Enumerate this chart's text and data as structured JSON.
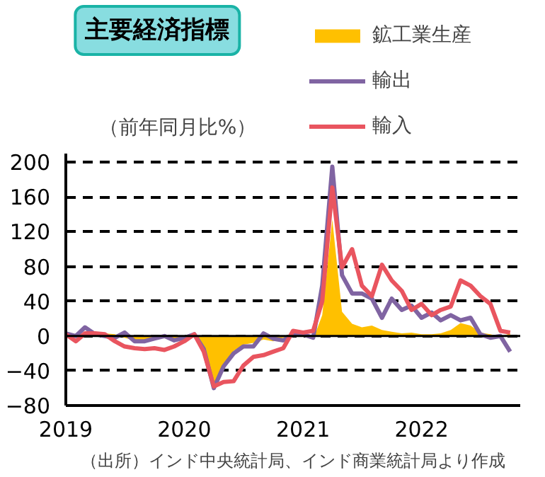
{
  "chart_data": {
    "type": "line",
    "title": "主要経済指標",
    "ylabel": "（前年同月比%）",
    "annotations": [
      "（出所）インド中央統計局、インド商業統計局より作成"
    ],
    "x": [
      "2019-01",
      "2019-02",
      "2019-03",
      "2019-04",
      "2019-05",
      "2019-06",
      "2019-07",
      "2019-08",
      "2019-09",
      "2019-10",
      "2019-11",
      "2019-12",
      "2020-01",
      "2020-02",
      "2020-03",
      "2020-04",
      "2020-05",
      "2020-06",
      "2020-07",
      "2020-08",
      "2020-09",
      "2020-10",
      "2020-11",
      "2020-12",
      "2021-01",
      "2021-02",
      "2021-03",
      "2021-04",
      "2021-05",
      "2021-06",
      "2021-07",
      "2021-08",
      "2021-09",
      "2021-10",
      "2021-11",
      "2021-12",
      "2022-01",
      "2022-02",
      "2022-03",
      "2022-04",
      "2022-05",
      "2022-06",
      "2022-07",
      "2022-08",
      "2022-09",
      "2022-10"
    ],
    "series": [
      {
        "name": "鉱工業生産",
        "type": "area",
        "color": "#ffc000",
        "values": [
          0,
          2,
          3,
          4,
          3,
          2,
          -2,
          -5,
          -7,
          -4,
          -2,
          -6,
          -3,
          2,
          -18,
          -57,
          -33,
          -17,
          -10,
          -8,
          -4,
          -6,
          -2,
          1,
          1,
          -4,
          24,
          134,
          28,
          14,
          10,
          12,
          7,
          5,
          3,
          4,
          2,
          2,
          3,
          7,
          15,
          12,
          4,
          2,
          -1,
          3
        ]
      },
      {
        "name": "輸出",
        "color": "#8064a2",
        "values": [
          3,
          0,
          10,
          2,
          0,
          -2,
          4,
          -6,
          -6,
          -3,
          0,
          -5,
          -2,
          2,
          -15,
          -60,
          -35,
          -20,
          -12,
          -12,
          3,
          -3,
          -5,
          2,
          2,
          -2,
          58,
          195,
          70,
          49,
          49,
          43,
          21,
          43,
          30,
          35,
          21,
          27,
          18,
          24,
          18,
          21,
          2,
          -2,
          0,
          -18
        ]
      },
      {
        "name": "輸入",
        "color": "#e9555f",
        "values": [
          2,
          -6,
          3,
          3,
          2,
          -6,
          -12,
          -14,
          -15,
          -14,
          -16,
          -12,
          -6,
          2,
          -18,
          -58,
          -53,
          -52,
          -34,
          -24,
          -22,
          -18,
          -14,
          6,
          4,
          6,
          40,
          171,
          79,
          100,
          58,
          46,
          82,
          64,
          52,
          30,
          37,
          24,
          30,
          34,
          64,
          58,
          46,
          37,
          6,
          4
        ]
      }
    ],
    "xlim": [
      "2019-01",
      "2022-11"
    ],
    "xticks": [
      {
        "value": "2019-01",
        "label": "2019"
      },
      {
        "value": "2020-01",
        "label": "2020"
      },
      {
        "value": "2021-01",
        "label": "2021"
      },
      {
        "value": "2022-01",
        "label": "2022"
      }
    ],
    "ylim": [
      -80,
      210
    ],
    "yticks": [
      -80,
      -40,
      0,
      40,
      80,
      120,
      160,
      200
    ],
    "ref_lines": [
      {
        "axis": "y",
        "value": 0,
        "color": "#000000"
      }
    ],
    "grid": "y",
    "legend": "top right",
    "line_style": "solid",
    "marker": "none"
  }
}
